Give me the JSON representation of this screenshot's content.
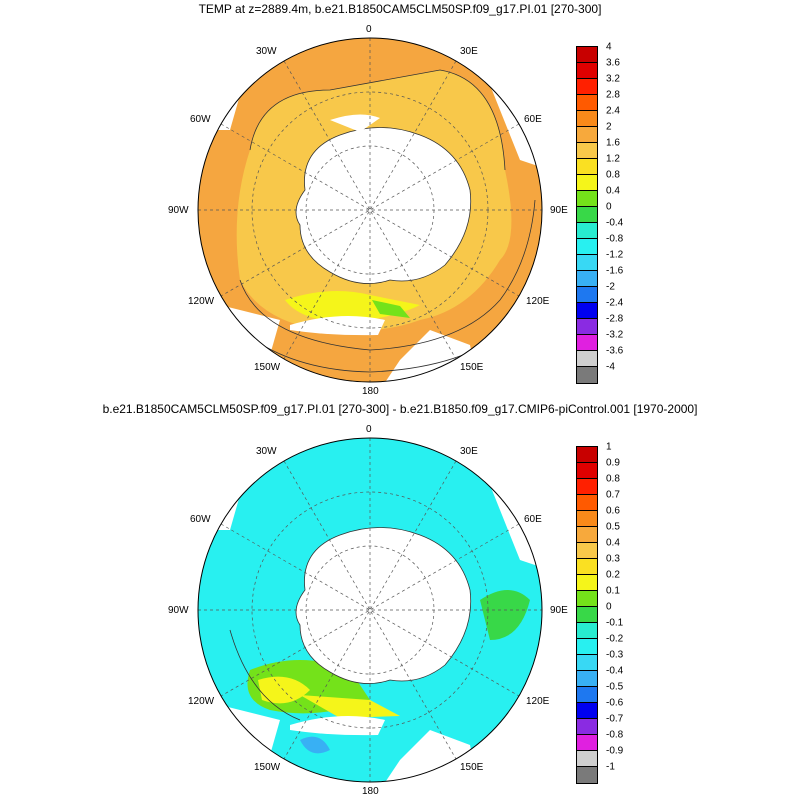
{
  "panels": [
    {
      "title": "TEMP at z=2889.4m, b.e21.B1850CAM5CLM50SP.f09_g17.PI.01 [270-300]",
      "lon_labels": [
        "0",
        "30E",
        "60E",
        "90E",
        "120E",
        "150E",
        "180",
        "150W",
        "120W",
        "90W",
        "60W",
        "30W"
      ],
      "colorbar": {
        "ticks": [
          "4",
          "3.6",
          "3.2",
          "2.8",
          "2.4",
          "2",
          "1.6",
          "1.2",
          "0.8",
          "0.4",
          "0",
          "-0.4",
          "-0.8",
          "-1.2",
          "-1.6",
          "-2",
          "-2.4",
          "-2.8",
          "-3.2",
          "-3.6",
          "-4"
        ],
        "colors": [
          "#c80000",
          "#e00000",
          "#ff2000",
          "#ff5a00",
          "#f98a1a",
          "#f7a93c",
          "#f8c84a",
          "#fae022",
          "#f5f51a",
          "#74e21a",
          "#38d848",
          "#28ecd0",
          "#28f0f0",
          "#38d8f4",
          "#38b0f4",
          "#1e78f0",
          "#0000f0",
          "#8a2be2",
          "#e020e0",
          "#cfcfcf",
          "#7a7a7a"
        ]
      }
    },
    {
      "title": "b.e21.B1850CAM5CLM50SP.f09_g17.PI.01 [270-300] - b.e21.B1850.f09_g17.CMIP6-piControl.001 [1970-2000]",
      "lon_labels": [
        "0",
        "30E",
        "60E",
        "90E",
        "120E",
        "150E",
        "180",
        "150W",
        "120W",
        "90W",
        "60W",
        "30W"
      ],
      "colorbar": {
        "ticks": [
          "1",
          "0.9",
          "0.8",
          "0.7",
          "0.6",
          "0.5",
          "0.4",
          "0.3",
          "0.2",
          "0.1",
          "0",
          "-0.1",
          "-0.2",
          "-0.3",
          "-0.4",
          "-0.5",
          "-0.6",
          "-0.7",
          "-0.8",
          "-0.9",
          "-1"
        ],
        "colors": [
          "#c80000",
          "#e00000",
          "#ff2000",
          "#ff5a00",
          "#f98a1a",
          "#f7a93c",
          "#f8c84a",
          "#fae022",
          "#f5f51a",
          "#74e21a",
          "#38d848",
          "#28ecd0",
          "#28f0f0",
          "#38d8f4",
          "#38b0f4",
          "#1e78f0",
          "#0000f0",
          "#8a2be2",
          "#e020e0",
          "#cfcfcf",
          "#7a7a7a"
        ]
      }
    }
  ],
  "colors": {
    "ocean_top": "#f5a640",
    "ocean_top_inner": "#f8c84a",
    "ocean_bottom": "#28f0f0",
    "land": "#ffffff",
    "green": "#74e21a",
    "yellow": "#f5f51a"
  }
}
